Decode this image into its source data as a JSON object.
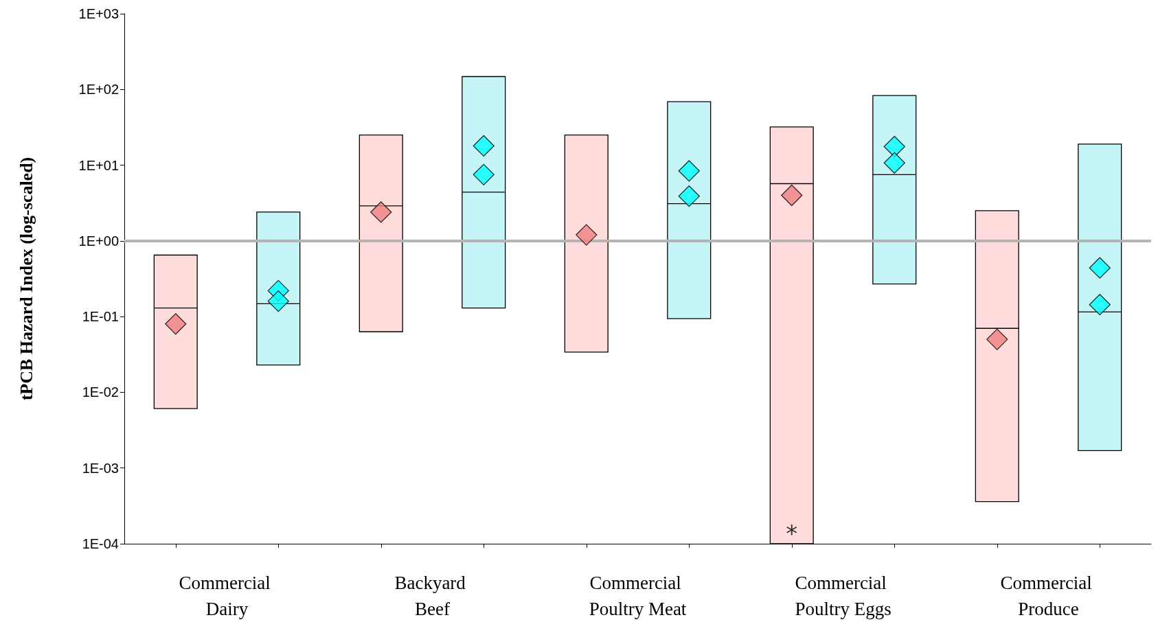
{
  "chart_data": {
    "type": "box",
    "ylabel": "tPCB Hazard Index (log-scaled)",
    "categories": [
      "Commercial Dairy",
      "Backyard Beef",
      "Commercial Poultry Meat",
      "Commercial Poultry Eggs",
      "Commercial Produce"
    ],
    "log": "y",
    "ylim": [
      0.0001,
      1000
    ],
    "yticks": [
      {
        "value": 1000,
        "label": "1E+03"
      },
      {
        "value": 100,
        "label": "1E+02"
      },
      {
        "value": 10,
        "label": "1E+01"
      },
      {
        "value": 1,
        "label": "1E+00"
      },
      {
        "value": 0.1,
        "label": "1E-01"
      },
      {
        "value": 0.01,
        "label": "1E-02"
      },
      {
        "value": 0.001,
        "label": "1E-03"
      },
      {
        "value": 0.0001,
        "label": "1E-04"
      }
    ],
    "grid": false,
    "series": [
      {
        "color": "#ffdcdc",
        "boxes": [
          {
            "low": 0.0061,
            "q1": 0.0061,
            "median": 0.13,
            "q3": 0.65,
            "high": 0.65
          },
          {
            "low": 0.063,
            "q1": 0.063,
            "median": 2.9,
            "q3": 25,
            "high": 25
          },
          {
            "low": 0.034,
            "q1": 0.034,
            "median": null,
            "q3": 25,
            "high": 25
          },
          {
            "low": 0.0001,
            "q1": 0.0001,
            "median": 5.7,
            "q3": 32,
            "high": 32
          },
          {
            "low": 0.00036,
            "q1": 0.00036,
            "median": 0.07,
            "q3": 2.5,
            "high": 2.5
          }
        ]
      },
      {
        "color": "#c6f5f8",
        "boxes": [
          {
            "low": 0.023,
            "q1": 0.023,
            "median": 0.148,
            "q3": 2.4,
            "high": 2.4
          },
          {
            "low": 0.13,
            "q1": 0.13,
            "median": 4.4,
            "q3": 148,
            "high": 148
          },
          {
            "low": 0.094,
            "q1": 0.094,
            "median": 3.1,
            "q3": 69,
            "high": 69
          },
          {
            "low": 0.27,
            "q1": 0.27,
            "median": 7.5,
            "q3": 83,
            "high": 83
          },
          {
            "low": 0.0017,
            "q1": 0.0017,
            "median": 0.115,
            "q3": 19,
            "high": 19
          }
        ]
      },
      {
        "type": "scatter",
        "color": "#f08080",
        "marker": "diamond",
        "x": [
          "Commercial Dairy",
          "Backyard Beef",
          "Commercial Poultry Meat",
          "Commercial Poultry Eggs",
          "Commercial Produce"
        ],
        "values": [
          0.08,
          2.4,
          1.2,
          4.0,
          0.05
        ]
      },
      {
        "type": "scatter",
        "color": "#00ffff",
        "marker": "diamond",
        "x": [
          "Commercial Dairy",
          "Backyard Beef",
          "Commercial Poultry Meat",
          "Commercial Poultry Eggs",
          "Commercial Produce"
        ],
        "values": [
          0.22,
          18,
          8.4,
          17.6,
          0.44
        ]
      },
      {
        "type": "scatter",
        "color": "#00ffff",
        "marker": "diamond",
        "x": [
          "Commercial Dairy",
          "Backyard Beef",
          "Commercial Poultry Meat",
          "Commercial Poultry Eggs",
          "Commercial Produce"
        ],
        "values": [
          0.16,
          7.5,
          3.9,
          10.7,
          0.144
        ]
      }
    ],
    "ref_lines": [
      {
        "axis": "y",
        "value": 1,
        "color": "#b4b4b4"
      }
    ],
    "annotations": [
      "*"
    ]
  }
}
